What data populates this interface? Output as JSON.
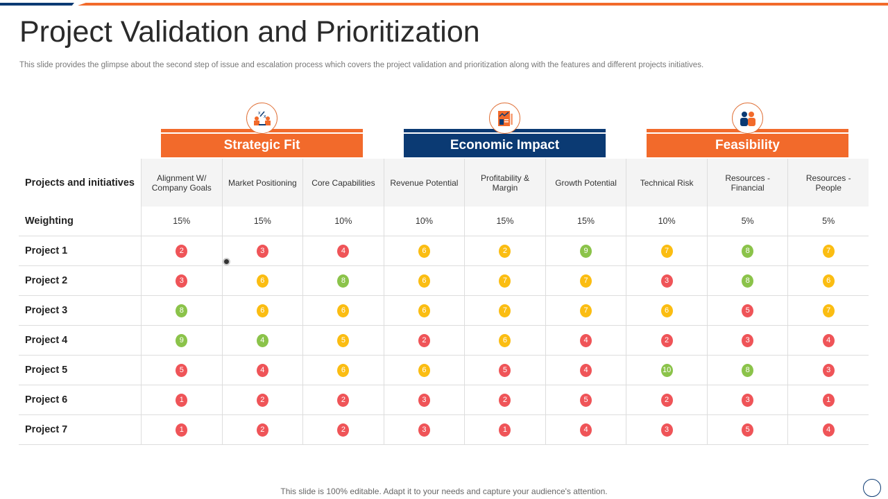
{
  "title": "Project Validation and Prioritization",
  "subtitle": "This slide provides the glimpse about the second step of issue and escalation process which covers the project validation and prioritization along with the features and different projects initiatives.",
  "colors": {
    "orange": "#f26a2b",
    "navy": "#0b3a73",
    "red": "#ef5458",
    "yellow": "#fbbd12",
    "green": "#8bc34a"
  },
  "groups": [
    {
      "label": "Strategic Fit",
      "color": "orange",
      "icon": "strategy-meeting-icon"
    },
    {
      "label": "Economic Impact",
      "color": "navy",
      "icon": "financial-report-icon"
    },
    {
      "label": "Feasibility",
      "color": "orange",
      "icon": "people-icon"
    }
  ],
  "table": {
    "corner_header": "Projects and initiatives",
    "columns": [
      "Alignment W/ Company Goals",
      "Market Positioning",
      "Core Capabilities",
      "Revenue Potential",
      "Profitability & Margin",
      "Growth Potential",
      "Technical Risk",
      "Resources - Financial",
      "Resources - People"
    ],
    "weighting_label": "Weighting",
    "weighting": [
      "15%",
      "15%",
      "10%",
      "10%",
      "15%",
      "15%",
      "10%",
      "5%",
      "5%"
    ],
    "rows": [
      {
        "name": "Project 1",
        "scores": [
          [
            "2",
            "red"
          ],
          [
            "3",
            "red"
          ],
          [
            "4",
            "red"
          ],
          [
            "6",
            "yellow"
          ],
          [
            "2",
            "yellow"
          ],
          [
            "9",
            "green"
          ],
          [
            "7",
            "yellow"
          ],
          [
            "8",
            "green"
          ],
          [
            "7",
            "yellow"
          ]
        ]
      },
      {
        "name": "Project 2",
        "scores": [
          [
            "3",
            "red"
          ],
          [
            "6",
            "yellow"
          ],
          [
            "8",
            "green"
          ],
          [
            "6",
            "yellow"
          ],
          [
            "7",
            "yellow"
          ],
          [
            "7",
            "yellow"
          ],
          [
            "3",
            "red"
          ],
          [
            "8",
            "green"
          ],
          [
            "6",
            "yellow"
          ]
        ]
      },
      {
        "name": "Project 3",
        "scores": [
          [
            "8",
            "green"
          ],
          [
            "6",
            "yellow"
          ],
          [
            "6",
            "yellow"
          ],
          [
            "6",
            "yellow"
          ],
          [
            "7",
            "yellow"
          ],
          [
            "7",
            "yellow"
          ],
          [
            "6",
            "yellow"
          ],
          [
            "5",
            "red"
          ],
          [
            "7",
            "yellow"
          ]
        ]
      },
      {
        "name": "Project 4",
        "scores": [
          [
            "9",
            "green"
          ],
          [
            "4",
            "green"
          ],
          [
            "5",
            "yellow"
          ],
          [
            "2",
            "red"
          ],
          [
            "6",
            "yellow"
          ],
          [
            "4",
            "red"
          ],
          [
            "2",
            "red"
          ],
          [
            "3",
            "red"
          ],
          [
            "4",
            "red"
          ]
        ]
      },
      {
        "name": "Project 5",
        "scores": [
          [
            "5",
            "red"
          ],
          [
            "4",
            "red"
          ],
          [
            "6",
            "yellow"
          ],
          [
            "6",
            "yellow"
          ],
          [
            "5",
            "red"
          ],
          [
            "4",
            "red"
          ],
          [
            "10",
            "green"
          ],
          [
            "8",
            "green"
          ],
          [
            "3",
            "red"
          ]
        ]
      },
      {
        "name": "Project 6",
        "scores": [
          [
            "1",
            "red"
          ],
          [
            "2",
            "red"
          ],
          [
            "2",
            "red"
          ],
          [
            "3",
            "red"
          ],
          [
            "2",
            "red"
          ],
          [
            "5",
            "red"
          ],
          [
            "2",
            "red"
          ],
          [
            "3",
            "red"
          ],
          [
            "1",
            "red"
          ]
        ]
      },
      {
        "name": "Project 7",
        "scores": [
          [
            "1",
            "red"
          ],
          [
            "2",
            "red"
          ],
          [
            "2",
            "red"
          ],
          [
            "3",
            "red"
          ],
          [
            "1",
            "red"
          ],
          [
            "4",
            "red"
          ],
          [
            "3",
            "red"
          ],
          [
            "5",
            "red"
          ],
          [
            "4",
            "red"
          ]
        ]
      }
    ]
  },
  "footer": "This slide is 100% editable. Adapt it to your needs and capture your audience's attention."
}
